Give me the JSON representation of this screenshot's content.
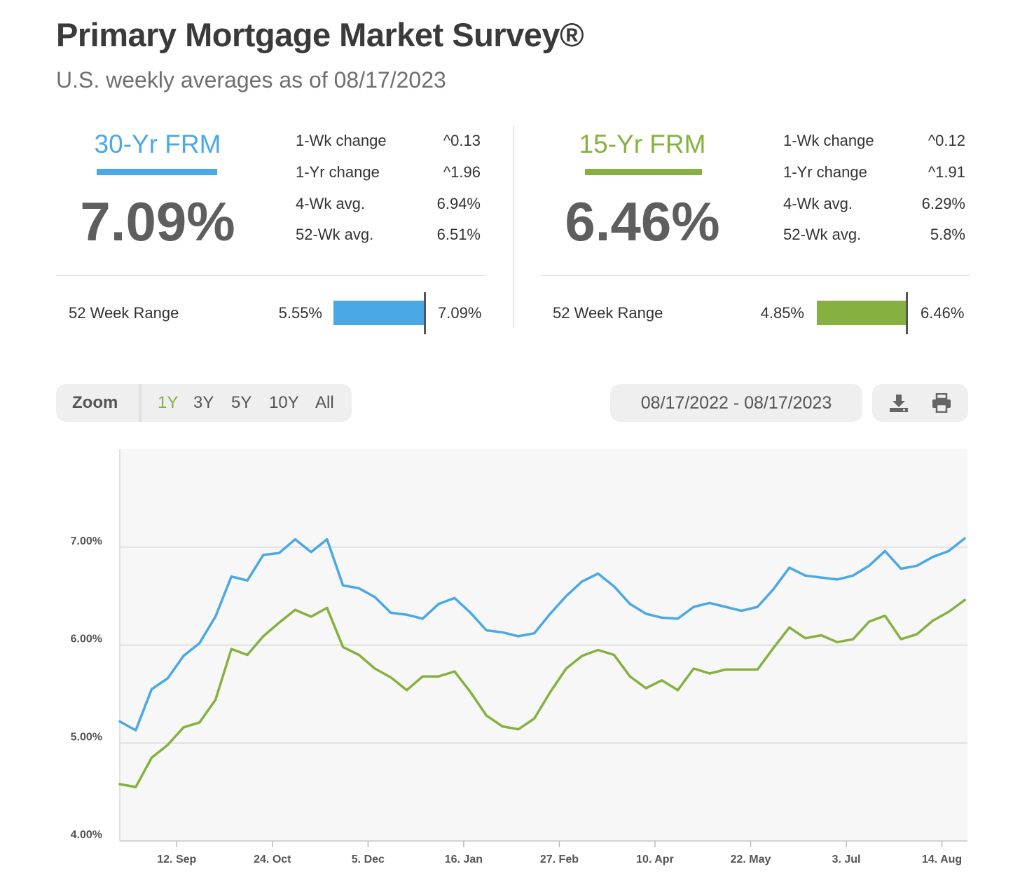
{
  "header": {
    "title": "Primary Mortgage Market Survey®",
    "subtitle": "U.S. weekly averages as of 08/17/2023"
  },
  "colors": {
    "frm30": "#4aa8e6",
    "frm15": "#86b140"
  },
  "frm30": {
    "name": "30-Yr FRM",
    "rate": "7.09%",
    "stats": [
      {
        "label": "1-Wk change",
        "value": "^0.13"
      },
      {
        "label": "1-Yr change",
        "value": "^1.96"
      },
      {
        "label": "4-Wk avg.",
        "value": "6.94%"
      },
      {
        "label": "52-Wk avg.",
        "value": "6.51%"
      }
    ],
    "range_label": "52 Week Range",
    "range_low": "5.55%",
    "range_high": "7.09%"
  },
  "frm15": {
    "name": "15-Yr FRM",
    "rate": "6.46%",
    "stats": [
      {
        "label": "1-Wk change",
        "value": "^0.12"
      },
      {
        "label": "1-Yr change",
        "value": "^1.91"
      },
      {
        "label": "4-Wk avg.",
        "value": "6.29%"
      },
      {
        "label": "52-Wk avg.",
        "value": "5.8%"
      }
    ],
    "range_label": "52 Week Range",
    "range_low": "4.85%",
    "range_high": "6.46%"
  },
  "zoom": {
    "label": "Zoom",
    "options": [
      "1Y",
      "3Y",
      "5Y",
      "10Y",
      "All"
    ],
    "active": "1Y"
  },
  "date_range": "08/17/2022 - 08/17/2023",
  "tools": {
    "download_icon": "download-icon",
    "print_icon": "print-icon"
  },
  "chart_data": {
    "type": "line",
    "x_start": "2022-08-18",
    "x_step_days": 7,
    "x_ticks": [
      {
        "label": "12. Sep",
        "date": "2022-09-12"
      },
      {
        "label": "24. Oct",
        "date": "2022-10-24"
      },
      {
        "label": "5. Dec",
        "date": "2022-12-05"
      },
      {
        "label": "16. Jan",
        "date": "2023-01-16"
      },
      {
        "label": "27. Feb",
        "date": "2023-02-27"
      },
      {
        "label": "10. Apr",
        "date": "2023-04-10"
      },
      {
        "label": "22. May",
        "date": "2023-05-22"
      },
      {
        "label": "3. Jul",
        "date": "2023-07-03"
      },
      {
        "label": "14. Aug",
        "date": "2023-08-14"
      }
    ],
    "y_ticks": [
      {
        "label": "4.00%",
        "value": 4.0
      },
      {
        "label": "5.00%",
        "value": 5.0
      },
      {
        "label": "6.00%",
        "value": 6.0
      },
      {
        "label": "7.00%",
        "value": 7.0
      }
    ],
    "ylim": [
      4.0,
      8.0
    ],
    "grid": true,
    "series": [
      {
        "color": "#4aa8e6",
        "values": [
          5.22,
          5.13,
          5.55,
          5.66,
          5.89,
          6.02,
          6.29,
          6.7,
          6.66,
          6.92,
          6.94,
          7.08,
          6.95,
          7.08,
          6.61,
          6.58,
          6.49,
          6.33,
          6.31,
          6.27,
          6.42,
          6.48,
          6.33,
          6.15,
          6.13,
          6.09,
          6.12,
          6.32,
          6.5,
          6.65,
          6.73,
          6.6,
          6.42,
          6.32,
          6.28,
          6.27,
          6.39,
          6.43,
          6.39,
          6.35,
          6.39,
          6.57,
          6.79,
          6.71,
          6.69,
          6.67,
          6.71,
          6.81,
          6.96,
          6.78,
          6.81,
          6.9,
          6.96,
          7.09
        ]
      },
      {
        "color": "#86b140",
        "values": [
          4.58,
          4.55,
          4.85,
          4.98,
          5.16,
          5.21,
          5.44,
          5.96,
          5.9,
          6.09,
          6.23,
          6.36,
          6.29,
          6.38,
          5.98,
          5.9,
          5.76,
          5.67,
          5.54,
          5.68,
          5.68,
          5.73,
          5.52,
          5.28,
          5.17,
          5.14,
          5.25,
          5.52,
          5.76,
          5.89,
          5.95,
          5.9,
          5.68,
          5.56,
          5.64,
          5.54,
          5.76,
          5.71,
          5.75,
          5.75,
          5.75,
          5.97,
          6.18,
          6.07,
          6.1,
          6.03,
          6.06,
          6.24,
          6.3,
          6.06,
          6.11,
          6.25,
          6.34,
          6.46
        ]
      }
    ]
  }
}
